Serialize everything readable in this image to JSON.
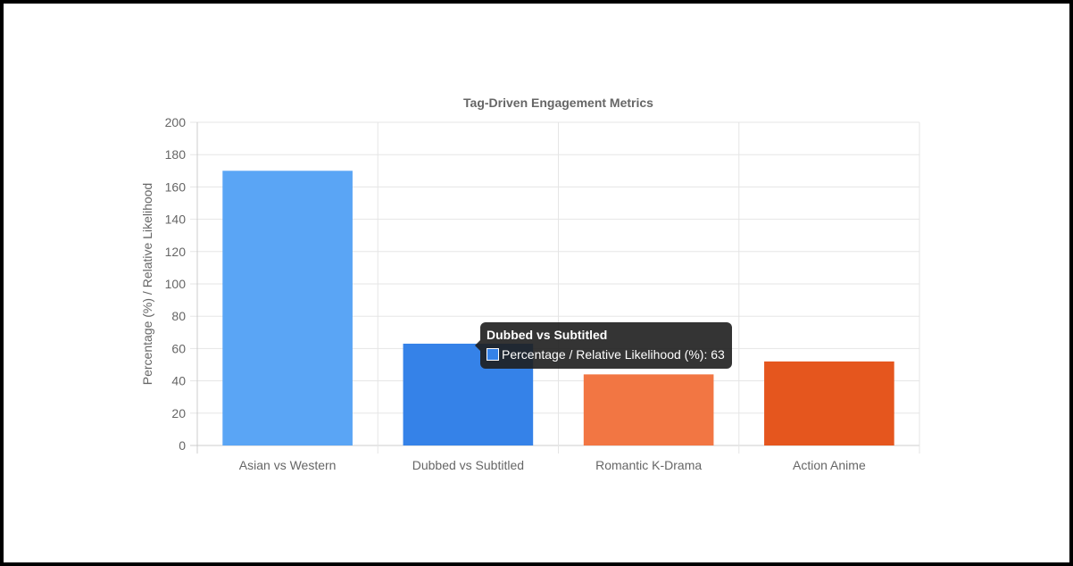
{
  "chart_data": {
    "type": "bar",
    "title": "Tag-Driven Engagement Metrics",
    "xlabel": "",
    "ylabel": "Percentage (%) / Relative Likelihood",
    "categories": [
      "Asian vs Western",
      "Dubbed vs Subtitled",
      "Romantic K-Drama",
      "Action Anime"
    ],
    "series": [
      {
        "name": "Percentage / Relative Likelihood (%)",
        "values": [
          170,
          63,
          44,
          52
        ]
      }
    ],
    "colors": [
      "#5aa5f5",
      "#3582e8",
      "#f27643",
      "#e5561e"
    ],
    "ylim": [
      0,
      200
    ],
    "yticks": [
      0,
      20,
      40,
      60,
      80,
      100,
      120,
      140,
      160,
      180,
      200
    ],
    "grid": true,
    "legend": "none"
  },
  "tooltip": {
    "title": "Dubbed vs Subtitled",
    "label": "Percentage / Relative Likelihood (%): 63",
    "color": "#3582e8"
  }
}
